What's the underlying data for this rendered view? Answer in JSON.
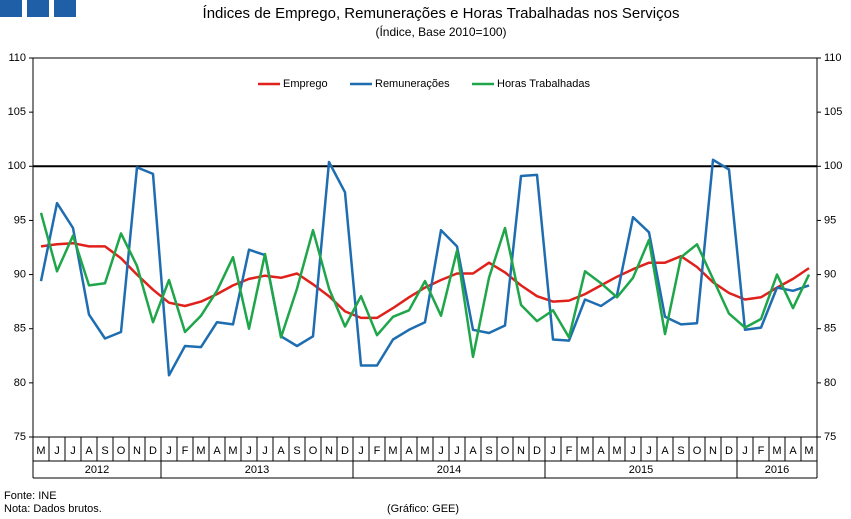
{
  "chart_data": {
    "type": "line",
    "title": "Índices de Emprego, Remunerações e Horas Trabalhadas nos Serviços",
    "subtitle": "(Índice, Base 2010=100)",
    "categories": [
      "M",
      "J",
      "J",
      "A",
      "S",
      "O",
      "N",
      "D",
      "J",
      "F",
      "M",
      "A",
      "M",
      "J",
      "J",
      "A",
      "S",
      "O",
      "N",
      "D",
      "J",
      "F",
      "M",
      "A",
      "M",
      "J",
      "J",
      "A",
      "S",
      "O",
      "N",
      "D",
      "J",
      "F",
      "M",
      "A",
      "M",
      "J",
      "J",
      "A",
      "S",
      "O",
      "N",
      "D",
      "J",
      "F",
      "M",
      "A",
      "M"
    ],
    "years": [
      {
        "label": "2012",
        "months": 8
      },
      {
        "label": "2013",
        "months": 12
      },
      {
        "label": "2014",
        "months": 12
      },
      {
        "label": "2015",
        "months": 12
      },
      {
        "label": "2016",
        "months": 5
      }
    ],
    "series": [
      {
        "name": "Emprego",
        "color": "#e0211b",
        "values": [
          92.6,
          92.8,
          92.9,
          92.6,
          92.6,
          91.5,
          90.0,
          88.6,
          87.4,
          87.1,
          87.5,
          88.2,
          89.0,
          89.6,
          89.9,
          89.7,
          90.1,
          89.1,
          88.0,
          86.6,
          86.0,
          86.0,
          86.9,
          87.9,
          88.8,
          89.5,
          90.1,
          90.1,
          91.1,
          90.2,
          89.0,
          88.0,
          87.5,
          87.6,
          88.2,
          89.0,
          89.8,
          90.5,
          91.1,
          91.1,
          91.7,
          90.7,
          89.3,
          88.3,
          87.7,
          87.9,
          88.8,
          89.6,
          90.6
        ]
      },
      {
        "name": "Remunerações",
        "color": "#1f6db1",
        "values": [
          89.4,
          96.6,
          94.3,
          86.3,
          84.1,
          84.7,
          99.9,
          99.3,
          80.7,
          83.4,
          83.3,
          85.6,
          85.4,
          92.3,
          91.8,
          84.3,
          83.4,
          84.3,
          100.4,
          97.6,
          81.6,
          81.6,
          84.0,
          84.9,
          85.6,
          94.1,
          92.6,
          84.9,
          84.6,
          85.3,
          99.1,
          99.2,
          84.0,
          83.9,
          87.7,
          87.1,
          88.1,
          95.3,
          93.9,
          86.1,
          85.4,
          85.5,
          100.6,
          99.7,
          84.9,
          85.1,
          88.8,
          88.5,
          89.0
        ]
      },
      {
        "name": "Horas Trabalhadas",
        "color": "#1fa64a",
        "values": [
          95.7,
          90.3,
          93.6,
          89.0,
          89.2,
          93.8,
          90.8,
          85.6,
          89.5,
          84.7,
          86.2,
          88.5,
          91.6,
          85.0,
          91.9,
          84.2,
          88.7,
          94.1,
          88.7,
          85.2,
          88.0,
          84.4,
          86.1,
          86.7,
          89.4,
          86.2,
          92.2,
          82.4,
          89.7,
          94.3,
          87.2,
          85.7,
          86.7,
          84.2,
          90.3,
          89.2,
          87.9,
          89.7,
          93.2,
          84.5,
          91.6,
          92.8,
          89.6,
          86.4,
          85.1,
          85.9,
          90.0,
          86.9,
          90.0
        ]
      }
    ],
    "reference_line": 100,
    "ylim": [
      75,
      110
    ],
    "yticks": [
      75,
      80,
      85,
      90,
      95,
      100,
      105,
      110
    ],
    "y2lim": [
      75,
      110
    ],
    "y2ticks": [
      75,
      80,
      85,
      90,
      95,
      100,
      105,
      110
    ],
    "legend": "top",
    "source": "Fonte: INE",
    "note": "Nota: Dados brutos.",
    "credit": "(Gráfico: GEE)"
  }
}
